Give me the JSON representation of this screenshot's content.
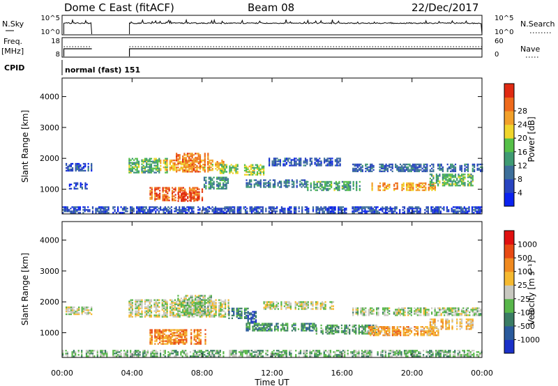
{
  "header": {
    "station": "Dome C East (fitACF)",
    "beam": "Beam 08",
    "date": "22/Dec/2017"
  },
  "strips": {
    "nsky_label": "N.Sky",
    "nsky_ticks": [
      "10^5",
      "10^0"
    ],
    "nsearch_label": "N.Search",
    "nsearch_ticks": [
      "10^5",
      "10^0"
    ],
    "freq_label_top": "Freq.",
    "freq_label_bottom": "[MHz]",
    "freq_ticks": [
      "18",
      "8"
    ],
    "nave_label": "Nave",
    "nave_ticks": [
      "60",
      "0"
    ],
    "cpid_label": "CPID",
    "cpid_value": "normal (fast) 151"
  },
  "chart_data": [
    {
      "type": "heatmap",
      "name": "power",
      "ylabel": "Slant Range [km]",
      "xlabel": "",
      "y_ticks": [
        1000,
        2000,
        3000,
        4000
      ],
      "ylim": [
        200,
        4600
      ],
      "xlim_hours": [
        0,
        24
      ],
      "colorbar_label": "Power [dB]",
      "colorbar_ticks": [
        "4",
        "8",
        "12",
        "16",
        "20",
        "24",
        "28"
      ],
      "colorbar_colors": [
        "#0a22f0",
        "#2844c0",
        "#3d6f9a",
        "#3f9a73",
        "#56c048",
        "#f0d52c",
        "#f2a02a",
        "#ee6a1c",
        "#e02a12"
      ],
      "bands": [
        {
          "t": [
            0.2,
            1.7
          ],
          "r": [
            1580,
            1820
          ],
          "level": 0.22
        },
        {
          "t": [
            3.8,
            6.0
          ],
          "r": [
            1520,
            1980
          ],
          "level": 0.45
        },
        {
          "t": [
            5.5,
            9.2
          ],
          "r": [
            1600,
            1950
          ],
          "level": 0.68
        },
        {
          "t": [
            6.5,
            8.3
          ],
          "r": [
            1550,
            2150
          ],
          "level": 0.8
        },
        {
          "t": [
            9.0,
            10.2
          ],
          "r": [
            1500,
            1800
          ],
          "level": 0.5
        },
        {
          "t": [
            10.4,
            11.5
          ],
          "r": [
            1450,
            1800
          ],
          "level": 0.55
        },
        {
          "t": [
            11.8,
            16.0
          ],
          "r": [
            1750,
            2000
          ],
          "level": 0.2
        },
        {
          "t": [
            16.5,
            24.0
          ],
          "r": [
            1560,
            1820
          ],
          "level": 0.25
        },
        {
          "t": [
            5.0,
            8.0
          ],
          "r": [
            620,
            1050
          ],
          "level": 0.85
        },
        {
          "t": [
            6.6,
            7.8
          ],
          "r": [
            600,
            900
          ],
          "level": 0.95
        },
        {
          "t": [
            8.0,
            9.5
          ],
          "r": [
            1000,
            1400
          ],
          "level": 0.35
        },
        {
          "t": [
            10.5,
            14.0
          ],
          "r": [
            1050,
            1300
          ],
          "level": 0.3
        },
        {
          "t": [
            14.0,
            17.0
          ],
          "r": [
            950,
            1250
          ],
          "level": 0.42
        },
        {
          "t": [
            17.5,
            21.5
          ],
          "r": [
            950,
            1200
          ],
          "level": 0.72
        },
        {
          "t": [
            21.0,
            23.5
          ],
          "r": [
            1100,
            1500
          ],
          "level": 0.45
        },
        {
          "t": [
            0.3,
            1.4
          ],
          "r": [
            1000,
            1200
          ],
          "level": 0.15
        },
        {
          "t": [
            0.0,
            24.0
          ],
          "r": [
            220,
            420
          ],
          "level": 0.18
        }
      ]
    },
    {
      "type": "heatmap",
      "name": "velocity",
      "ylabel": "Slant Range [km]",
      "xlabel": "Time UT",
      "y_ticks": [
        1000,
        2000,
        3000,
        4000
      ],
      "ylim": [
        200,
        4600
      ],
      "x_ticks": [
        "00:00",
        "04:00",
        "08:00",
        "12:00",
        "16:00",
        "20:00",
        "00:00"
      ],
      "xlim_hours": [
        0,
        24
      ],
      "colorbar_label": "Velocity [m s⁻¹]",
      "colorbar_ticks": [
        "1000",
        "500",
        "100",
        "25",
        "-25",
        "-100",
        "-500",
        "-1000"
      ],
      "colorbar_colors": [
        "#1a30c8",
        "#2a5a9c",
        "#3a7c64",
        "#58b64a",
        "#c8c8c0",
        "#f5b930",
        "#f08a20",
        "#e84a14",
        "#e01010"
      ],
      "bands": [
        {
          "t": [
            0.2,
            1.7
          ],
          "r": [
            1580,
            1820
          ],
          "level": 0.5
        },
        {
          "t": [
            3.8,
            9.5
          ],
          "r": [
            1500,
            2050
          ],
          "level": 0.5
        },
        {
          "t": [
            6.5,
            8.5
          ],
          "r": [
            1550,
            2200
          ],
          "level": 0.45
        },
        {
          "t": [
            9.5,
            10.6
          ],
          "r": [
            1450,
            1800
          ],
          "level": 0.28
        },
        {
          "t": [
            10.5,
            11.2
          ],
          "r": [
            1300,
            1700
          ],
          "level": 0.15
        },
        {
          "t": [
            11.5,
            15.5
          ],
          "r": [
            1750,
            2000
          ],
          "level": 0.5
        },
        {
          "t": [
            16.5,
            24.0
          ],
          "r": [
            1550,
            1800
          ],
          "level": 0.45
        },
        {
          "t": [
            5.0,
            8.2
          ],
          "r": [
            620,
            1100
          ],
          "level": 0.72
        },
        {
          "t": [
            10.5,
            14.5
          ],
          "r": [
            1050,
            1300
          ],
          "level": 0.3
        },
        {
          "t": [
            14.5,
            18.0
          ],
          "r": [
            950,
            1250
          ],
          "level": 0.35
        },
        {
          "t": [
            17.5,
            21.5
          ],
          "r": [
            900,
            1200
          ],
          "level": 0.66
        },
        {
          "t": [
            21.0,
            23.5
          ],
          "r": [
            1100,
            1450
          ],
          "level": 0.6
        },
        {
          "t": [
            0.0,
            24.0
          ],
          "r": [
            220,
            420
          ],
          "level": 0.4
        }
      ]
    }
  ]
}
